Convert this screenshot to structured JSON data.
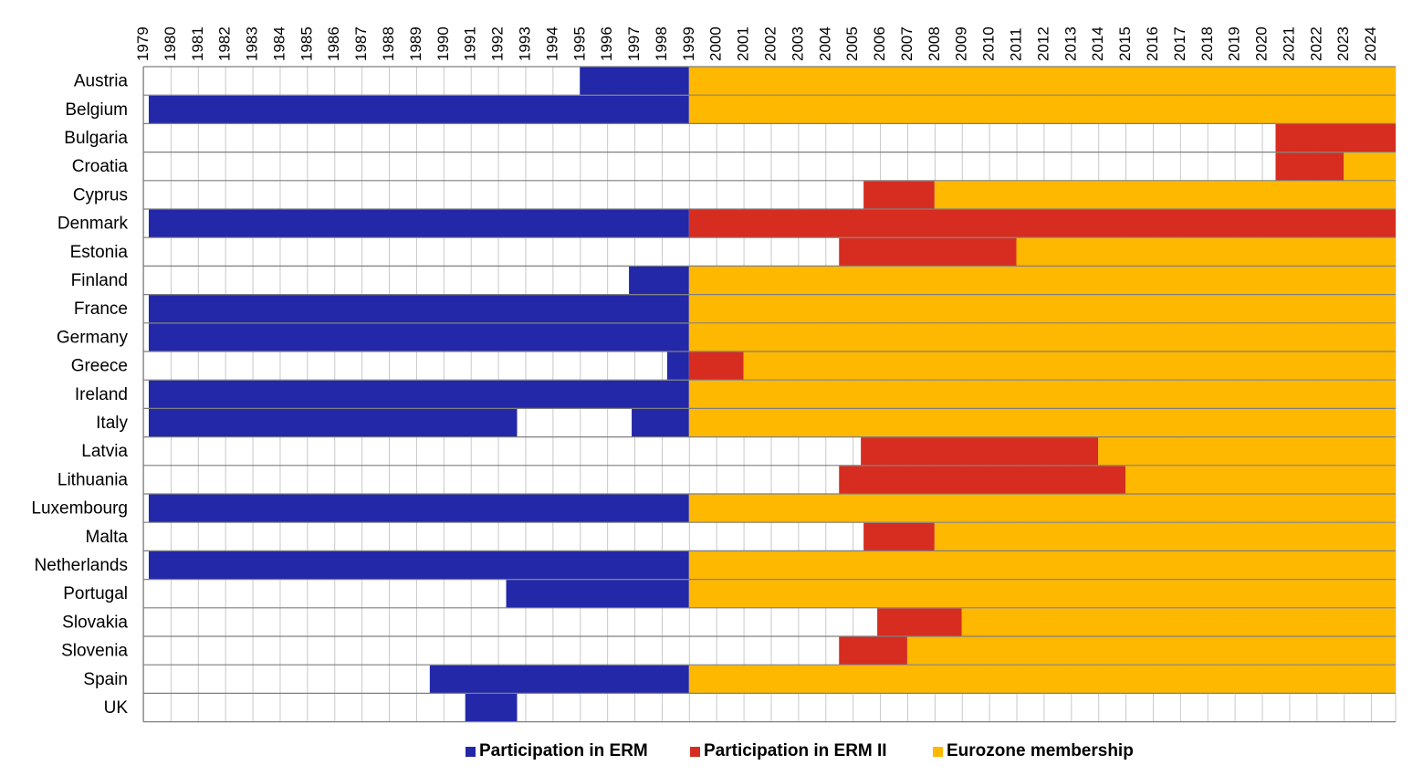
{
  "chart_data": {
    "type": "timeline",
    "years": [
      1979,
      1980,
      1981,
      1982,
      1983,
      1984,
      1985,
      1986,
      1987,
      1988,
      1989,
      1990,
      1991,
      1992,
      1993,
      1994,
      1995,
      1996,
      1997,
      1998,
      1999,
      2000,
      2001,
      2002,
      2003,
      2004,
      2005,
      2006,
      2007,
      2008,
      2009,
      2010,
      2011,
      2012,
      2013,
      2014,
      2015,
      2016,
      2017,
      2018,
      2019,
      2020,
      2021,
      2022,
      2023,
      2024
    ],
    "year_labels": [
      "1979",
      "1980",
      "1981",
      "1982",
      "1983",
      "1984",
      "1985",
      "1986",
      "1987",
      "1988",
      "1989",
      "1990",
      "1991",
      "1992",
      "1993",
      "1994",
      "1995",
      "1996",
      "1997",
      "1998",
      "1999",
      "2000",
      "2001",
      "2002",
      "2003",
      "2004",
      "2005",
      "2006",
      "2007",
      "2008",
      "2009",
      "2010",
      "2011",
      "2012",
      "2013",
      "2014",
      "2015",
      "2016",
      "2017",
      "2018",
      "2019",
      "2020",
      "2021",
      "2022",
      "2023",
      "2024"
    ],
    "x_range": [
      1979,
      2024.9
    ],
    "grid": true,
    "legend_position": "bottom",
    "categories_meta": {
      "erm": {
        "label": "Participation in ERM",
        "color": "#2328a8"
      },
      "erm2": {
        "label": "Participation in ERM II",
        "color": "#d62d20"
      },
      "euro": {
        "label": "Eurozone membership",
        "color": "#ffb800"
      }
    },
    "countries": [
      {
        "name": "Austria",
        "segments": [
          {
            "type": "erm",
            "start": 1995.0,
            "end": 1999.0
          },
          {
            "type": "euro",
            "start": 1999.0,
            "end": 2024.9
          }
        ]
      },
      {
        "name": "Belgium",
        "segments": [
          {
            "type": "erm",
            "start": 1979.2,
            "end": 1999.0
          },
          {
            "type": "euro",
            "start": 1999.0,
            "end": 2024.9
          }
        ]
      },
      {
        "name": "Bulgaria",
        "segments": [
          {
            "type": "erm2",
            "start": 2020.5,
            "end": 2024.9
          }
        ]
      },
      {
        "name": "Croatia",
        "segments": [
          {
            "type": "erm2",
            "start": 2020.5,
            "end": 2023.0
          },
          {
            "type": "euro",
            "start": 2023.0,
            "end": 2024.9
          }
        ]
      },
      {
        "name": "Cyprus",
        "segments": [
          {
            "type": "erm2",
            "start": 2005.4,
            "end": 2008.0
          },
          {
            "type": "euro",
            "start": 2008.0,
            "end": 2024.9
          }
        ]
      },
      {
        "name": "Denmark",
        "segments": [
          {
            "type": "erm",
            "start": 1979.2,
            "end": 1999.0
          },
          {
            "type": "erm2",
            "start": 1999.0,
            "end": 2024.9
          }
        ]
      },
      {
        "name": "Estonia",
        "segments": [
          {
            "type": "erm2",
            "start": 2004.5,
            "end": 2011.0
          },
          {
            "type": "euro",
            "start": 2011.0,
            "end": 2024.9
          }
        ]
      },
      {
        "name": "Finland",
        "segments": [
          {
            "type": "erm",
            "start": 1996.8,
            "end": 1999.0
          },
          {
            "type": "euro",
            "start": 1999.0,
            "end": 2024.9
          }
        ]
      },
      {
        "name": "France",
        "segments": [
          {
            "type": "erm",
            "start": 1979.2,
            "end": 1999.0
          },
          {
            "type": "euro",
            "start": 1999.0,
            "end": 2024.9
          }
        ]
      },
      {
        "name": "Germany",
        "segments": [
          {
            "type": "erm",
            "start": 1979.2,
            "end": 1999.0
          },
          {
            "type": "euro",
            "start": 1999.0,
            "end": 2024.9
          }
        ]
      },
      {
        "name": "Greece",
        "segments": [
          {
            "type": "erm",
            "start": 1998.2,
            "end": 1999.0
          },
          {
            "type": "erm2",
            "start": 1999.0,
            "end": 2001.0
          },
          {
            "type": "euro",
            "start": 2001.0,
            "end": 2024.9
          }
        ]
      },
      {
        "name": "Ireland",
        "segments": [
          {
            "type": "erm",
            "start": 1979.2,
            "end": 1999.0
          },
          {
            "type": "euro",
            "start": 1999.0,
            "end": 2024.9
          }
        ]
      },
      {
        "name": "Italy",
        "segments": [
          {
            "type": "erm",
            "start": 1979.2,
            "end": 1992.7
          },
          {
            "type": "erm",
            "start": 1996.9,
            "end": 1999.0
          },
          {
            "type": "euro",
            "start": 1999.0,
            "end": 2024.9
          }
        ]
      },
      {
        "name": "Latvia",
        "segments": [
          {
            "type": "erm2",
            "start": 2005.3,
            "end": 2014.0
          },
          {
            "type": "euro",
            "start": 2014.0,
            "end": 2024.9
          }
        ]
      },
      {
        "name": "Lithuania",
        "segments": [
          {
            "type": "erm2",
            "start": 2004.5,
            "end": 2015.0
          },
          {
            "type": "euro",
            "start": 2015.0,
            "end": 2024.9
          }
        ]
      },
      {
        "name": "Luxembourg",
        "segments": [
          {
            "type": "erm",
            "start": 1979.2,
            "end": 1999.0
          },
          {
            "type": "euro",
            "start": 1999.0,
            "end": 2024.9
          }
        ]
      },
      {
        "name": "Malta",
        "segments": [
          {
            "type": "erm2",
            "start": 2005.4,
            "end": 2008.0
          },
          {
            "type": "euro",
            "start": 2008.0,
            "end": 2024.9
          }
        ]
      },
      {
        "name": "Netherlands",
        "segments": [
          {
            "type": "erm",
            "start": 1979.2,
            "end": 1999.0
          },
          {
            "type": "euro",
            "start": 1999.0,
            "end": 2024.9
          }
        ]
      },
      {
        "name": "Portugal",
        "segments": [
          {
            "type": "erm",
            "start": 1992.3,
            "end": 1999.0
          },
          {
            "type": "euro",
            "start": 1999.0,
            "end": 2024.9
          }
        ]
      },
      {
        "name": "Slovakia",
        "segments": [
          {
            "type": "erm2",
            "start": 2005.9,
            "end": 2009.0
          },
          {
            "type": "euro",
            "start": 2009.0,
            "end": 2024.9
          }
        ]
      },
      {
        "name": "Slovenia",
        "segments": [
          {
            "type": "erm2",
            "start": 2004.5,
            "end": 2007.0
          },
          {
            "type": "euro",
            "start": 2007.0,
            "end": 2024.9
          }
        ]
      },
      {
        "name": "Spain",
        "segments": [
          {
            "type": "erm",
            "start": 1989.5,
            "end": 1999.0
          },
          {
            "type": "euro",
            "start": 1999.0,
            "end": 2024.9
          }
        ]
      },
      {
        "name": "UK",
        "segments": [
          {
            "type": "erm",
            "start": 1990.8,
            "end": 1992.7
          }
        ]
      }
    ]
  },
  "legend": {
    "erm_label": "Participation in ERM",
    "erm2_label": "Participation in ERM II",
    "euro_label": "Eurozone membership"
  }
}
